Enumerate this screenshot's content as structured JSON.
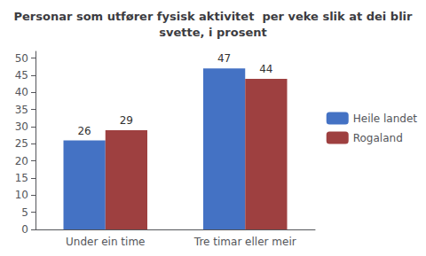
{
  "chart_data": {
    "type": "bar",
    "title": "Personar som utfører fysisk aktivitet  per veke slik at dei blir\nsvette, i prosent",
    "categories": [
      "Under ein time",
      "Tre timar eller meir"
    ],
    "series": [
      {
        "name": "Heile landet",
        "color": "#4472C4",
        "values": [
          26,
          47
        ]
      },
      {
        "name": "Rogaland",
        "color": "#9E4040",
        "values": [
          29,
          44
        ]
      }
    ],
    "ylim": [
      0,
      52
    ],
    "yticks": [
      0,
      5,
      10,
      15,
      20,
      25,
      30,
      35,
      40,
      45,
      50
    ],
    "grid": false,
    "legend": "right",
    "data_labels": true
  }
}
